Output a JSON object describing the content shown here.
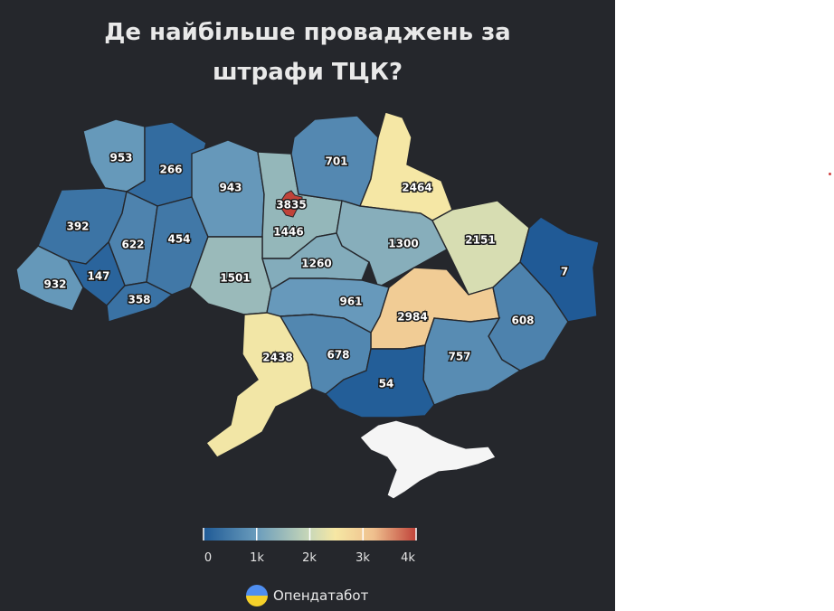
{
  "title": {
    "line1": "Де найбільше проваджень за",
    "line2": "штрафи ТЦК?"
  },
  "colors": {
    "background": "#25272c",
    "scale": [
      "#1f5a96",
      "#6a9cbc",
      "#c9d8b8",
      "#f6e7a4",
      "#efc08e",
      "#c0433a"
    ],
    "no_data": "#f5f5f5"
  },
  "map_data": {
    "value_range": [
      0,
      4000
    ],
    "regions": [
      {
        "id": "volyn",
        "value": 953
      },
      {
        "id": "rivne",
        "value": 266
      },
      {
        "id": "lviv",
        "value": 392
      },
      {
        "id": "ternopil",
        "value": 622
      },
      {
        "id": "khmelnytskyi",
        "value": 454
      },
      {
        "id": "zakarpattia",
        "value": 932
      },
      {
        "id": "ivano-frankivsk",
        "value": 147
      },
      {
        "id": "chernivtsi",
        "value": 358
      },
      {
        "id": "zhytomyr",
        "value": 943
      },
      {
        "id": "kyiv-oblast",
        "value": 1446
      },
      {
        "id": "kyiv-city",
        "value": 3835
      },
      {
        "id": "chernihiv",
        "value": 701
      },
      {
        "id": "sumy",
        "value": 2464
      },
      {
        "id": "poltava",
        "value": 1300
      },
      {
        "id": "kharkiv",
        "value": 2151
      },
      {
        "id": "luhansk",
        "value": 7
      },
      {
        "id": "vinnytsia",
        "value": 1501
      },
      {
        "id": "cherkasy",
        "value": 1260
      },
      {
        "id": "kirovohrad",
        "value": 961
      },
      {
        "id": "dnipropetrovsk",
        "value": 2984
      },
      {
        "id": "donetsk",
        "value": 608
      },
      {
        "id": "zaporizhzhia",
        "value": 757
      },
      {
        "id": "odesa",
        "value": 2438
      },
      {
        "id": "mykolaiv",
        "value": 678
      },
      {
        "id": "kherson",
        "value": 54
      }
    ]
  },
  "legend": {
    "ticks": [
      {
        "label": "0",
        "value": 0
      },
      {
        "label": "1k",
        "value": 1000
      },
      {
        "label": "2k",
        "value": 2000
      },
      {
        "label": "3k",
        "value": 3000
      },
      {
        "label": "4k",
        "value": 4000
      }
    ]
  },
  "brand": {
    "name": "Опендатабот",
    "logo": "opendatabot-logo-icon"
  }
}
